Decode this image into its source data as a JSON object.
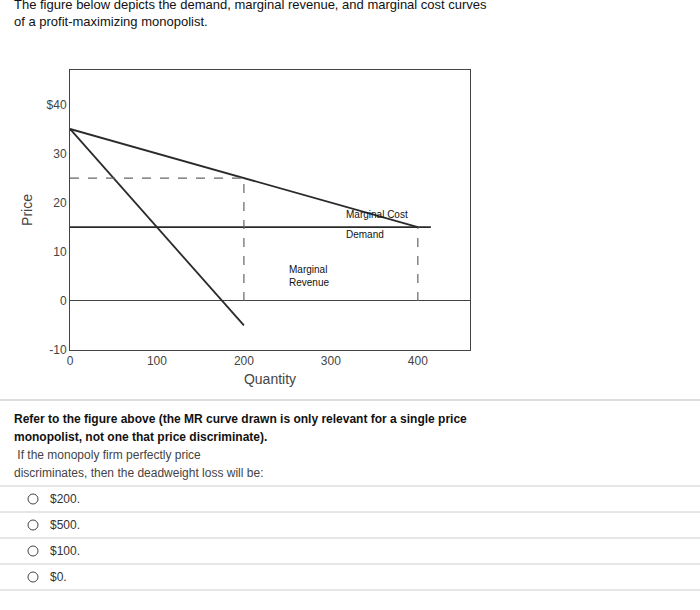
{
  "chart_data": {
    "type": "line",
    "title": "The figure below depicts the demand, marginal revenue, and marginal cost curves\nof a profit-maximizing monopolist.",
    "xlabel": "Quantity",
    "ylabel": "Price",
    "xlim": [
      0,
      460
    ],
    "xticks": [
      0,
      100,
      200,
      300,
      400
    ],
    "ylim": [
      -10,
      47
    ],
    "yticks": [
      -10,
      0,
      10,
      20,
      30,
      {
        "value": 40,
        "label": "$40"
      }
    ],
    "grid": false,
    "series": [
      {
        "color": "#2a2a2a",
        "line_style": "solid",
        "x": [
          0,
          400
        ],
        "values": [
          35,
          15
        ]
      },
      {
        "color": "#2a2a2a",
        "line_style": "solid",
        "x": [
          0,
          200
        ],
        "values": [
          35,
          -5
        ]
      },
      {
        "color": "#2a2a2a",
        "line_style": "solid",
        "x": [
          0,
          415
        ],
        "values": [
          15,
          15
        ]
      },
      {
        "color": "#666666",
        "line_style": "dashed",
        "x": [
          0,
          200
        ],
        "values": [
          25,
          25
        ]
      },
      {
        "color": "#666666",
        "line_style": "dashed",
        "x": [
          200,
          200
        ],
        "values": [
          0,
          25
        ]
      },
      {
        "color": "#666666",
        "line_style": "dashed",
        "x": [
          400,
          400
        ],
        "values": [
          0,
          15
        ]
      }
    ],
    "annotations": [
      {
        "text": "Marginal Cost",
        "x": 315,
        "y": 17.5
      },
      {
        "text": "Demand",
        "x": 315,
        "y": 13.5
      },
      {
        "text": "Marginal\nRevenue",
        "x": 250,
        "y": 5
      }
    ],
    "body": [
      "Refer to the figure above (the MR curve drawn is only relevant for a single price",
      "monopolist, not one that price discriminate).",
      " If the monopoly firm perfectly price",
      "discriminates, then the deadweight loss will be:"
    ],
    "options": [
      "$200.",
      "$500.",
      "$100.",
      "$0."
    ]
  }
}
